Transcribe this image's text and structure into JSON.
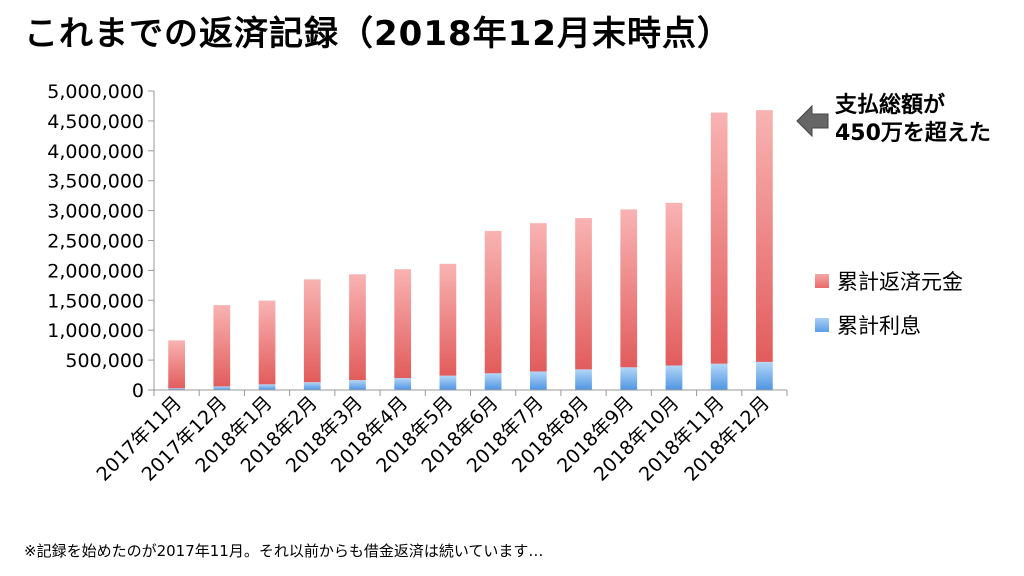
{
  "title": "これまでの返済記録（2018年12月末時点）",
  "annotation": {
    "line1": "支払総額が",
    "line2": "450万を超えた"
  },
  "legend": {
    "principal": "累計返済元金",
    "interest": "累計利息"
  },
  "footnote": "※記録を始めたのが2017年11月。それ以前からも借金返済は続いています…",
  "colors": {
    "principal_top": "#f9b3b3",
    "principal_bottom": "#e25c5c",
    "interest_top": "#b3d6f7",
    "interest_bottom": "#4f95e3",
    "axis": "#999999",
    "annotation_arrow": "#555555"
  },
  "chart_data": {
    "type": "bar",
    "stacked": true,
    "categories": [
      "2017年11月",
      "2017年12月",
      "2018年1月",
      "2018年2月",
      "2018年3月",
      "2018年4月",
      "2018年5月",
      "2018年6月",
      "2018年7月",
      "2018年8月",
      "2018年9月",
      "2018年10月",
      "2018年11月",
      "2018年12月"
    ],
    "series": [
      {
        "name": "累計利息",
        "values": [
          30000,
          60000,
          95000,
          130000,
          165000,
          200000,
          240000,
          280000,
          310000,
          345000,
          380000,
          410000,
          440000,
          470000
        ]
      },
      {
        "name": "累計返済元金",
        "values": [
          800000,
          1360000,
          1400000,
          1720000,
          1770000,
          1820000,
          1870000,
          2380000,
          2480000,
          2530000,
          2640000,
          2720000,
          4200000,
          4210000
        ]
      }
    ],
    "yticks": [
      "0",
      "500,000",
      "1,000,000",
      "1,500,000",
      "2,000,000",
      "2,500,000",
      "3,000,000",
      "3,500,000",
      "4,000,000",
      "4,500,000",
      "5,000,000"
    ],
    "ylim": [
      0,
      5000000
    ],
    "legend_position": "right",
    "grid": false
  }
}
